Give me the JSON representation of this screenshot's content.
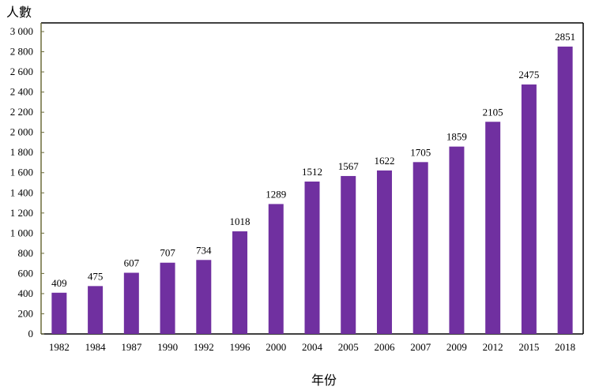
{
  "chart_data": {
    "type": "bar",
    "ylabel": "人數",
    "xlabel": "年份",
    "categories": [
      "1982",
      "1984",
      "1987",
      "1990",
      "1992",
      "1996",
      "2000",
      "2004",
      "2005",
      "2006",
      "2007",
      "2009",
      "2012",
      "2015",
      "2018"
    ],
    "values": [
      409,
      475,
      607,
      707,
      734,
      1018,
      1289,
      1512,
      1567,
      1622,
      1705,
      1859,
      2105,
      2475,
      2851
    ],
    "ylim": [
      0,
      3000
    ],
    "yticks": [
      0,
      200,
      400,
      600,
      800,
      1000,
      1200,
      1400,
      1600,
      1800,
      2000,
      2200,
      2400,
      2600,
      2800,
      3000
    ],
    "ytick_labels": [
      "0",
      "200",
      "400",
      "600",
      "800",
      "1 000",
      "1 200",
      "1 400",
      "1 600",
      "1 800",
      "2 000",
      "2 200",
      "2 400",
      "2 600",
      "2 800",
      "3 000"
    ],
    "grid": false,
    "data_labels": true,
    "bar_color": "#7030A0"
  }
}
